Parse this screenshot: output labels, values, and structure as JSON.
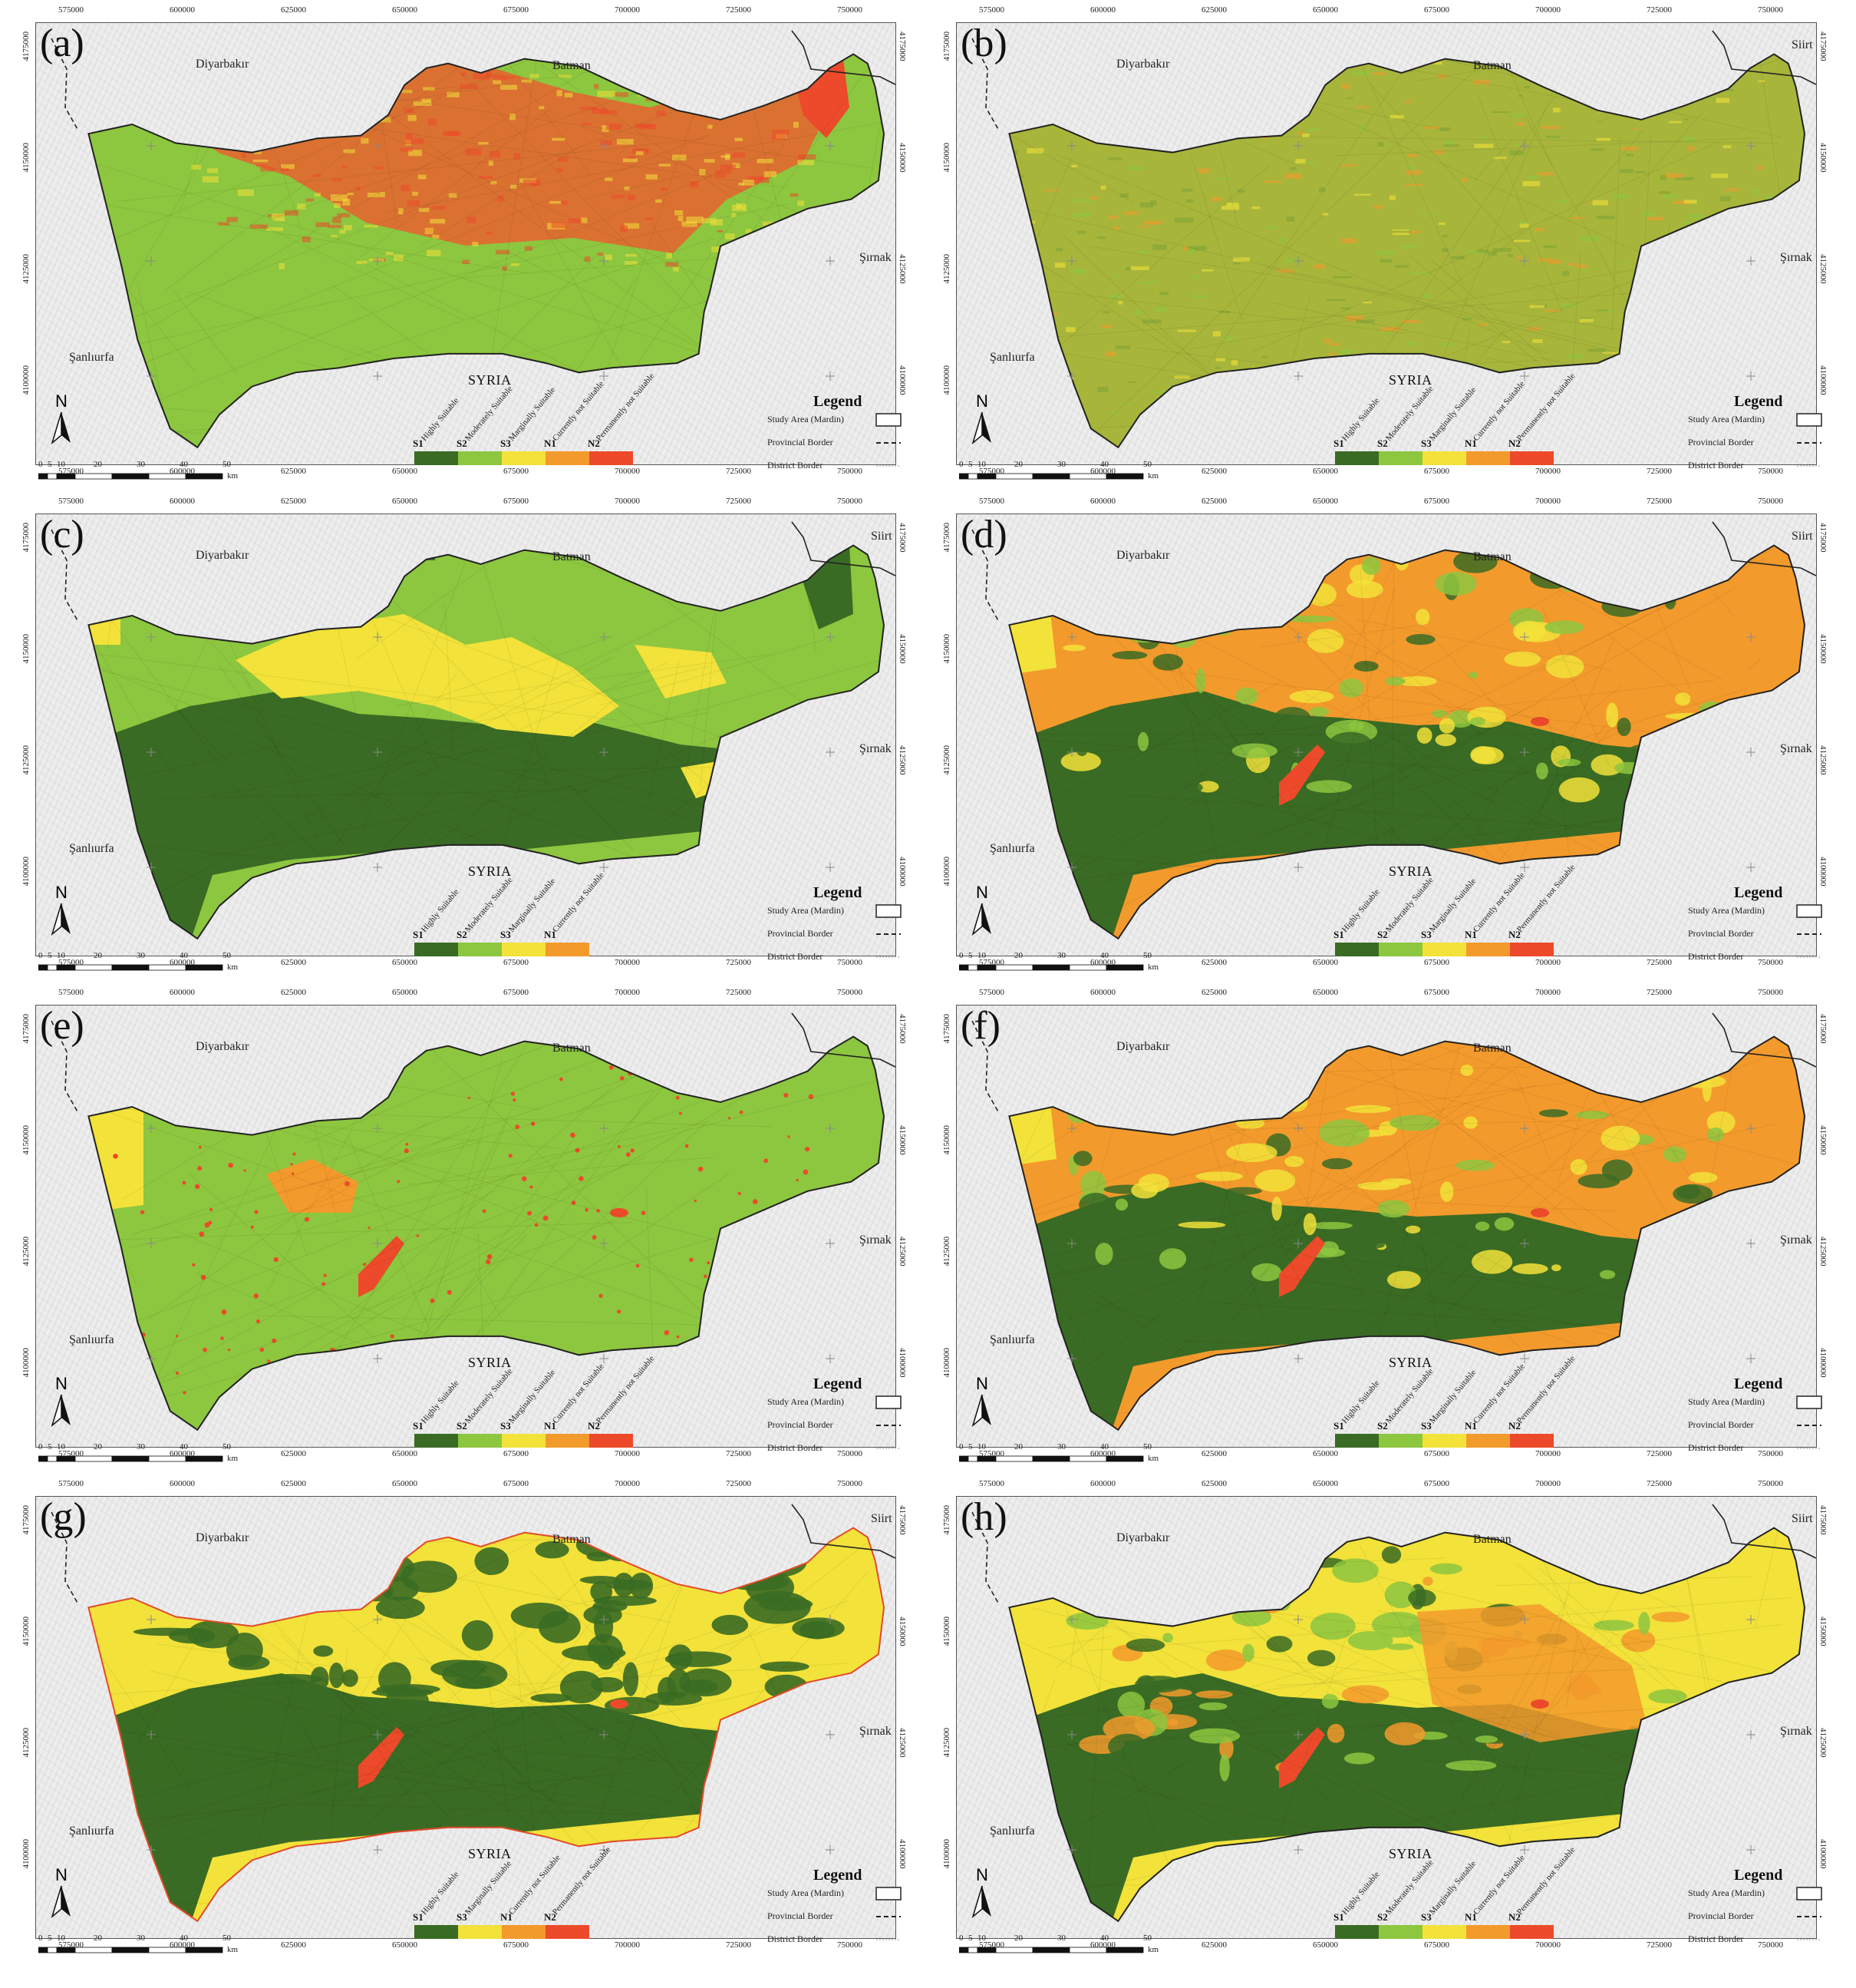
{
  "x_ticks": [
    "575000",
    "600000",
    "625000",
    "650000",
    "675000",
    "700000",
    "725000",
    "750000"
  ],
  "y_ticks": [
    "4175000",
    "4150000",
    "4125000",
    "4100000"
  ],
  "places": {
    "diyarbakir": "Diyarbakır",
    "batman": "Batman",
    "siirt": "Siirt",
    "sirnak": "Şırnak",
    "sanliurfa": "Şanlıurfa",
    "syria": "SYRIA"
  },
  "legend": {
    "title": "Legend",
    "study_area": "Study Area (Mardin)",
    "provincial": "Provincial Border",
    "district": "District Border"
  },
  "scale": {
    "labels": [
      "0",
      "5",
      "10",
      "20",
      "30",
      "40",
      "50"
    ],
    "unit": "km"
  },
  "north": "N",
  "class_colors": {
    "S1": "#3a6b24",
    "S2": "#8dc63f",
    "S3": "#f2e23a",
    "N1": "#f39a2c",
    "N2": "#ec4a2a"
  },
  "class_names": {
    "S1": "Highly Suitable",
    "S2": "Moderately Suitable",
    "S3": "Marginally Suitable",
    "N1": "Currently not Suitable",
    "N2": "Permanently not Suitable"
  },
  "panels": [
    {
      "label": "(a)",
      "classes": [
        "S1",
        "S2",
        "S3",
        "N1",
        "N2"
      ],
      "show_siirt": false,
      "dominant": [
        "#8dc63f",
        "#e8612f"
      ],
      "style": "gradient-a"
    },
    {
      "label": "(b)",
      "classes": [
        "S1",
        "S2",
        "S3",
        "N1",
        "N2"
      ],
      "show_siirt": true,
      "dominant": [
        "#9bbd3a",
        "#d8a030"
      ],
      "style": "gradient-b"
    },
    {
      "label": "(c)",
      "classes": [
        "S1",
        "S2",
        "S3",
        "N1"
      ],
      "show_siirt": true,
      "dominant": [
        "#3a6b24",
        "#8dc63f",
        "#f2e23a"
      ],
      "style": "zones-c"
    },
    {
      "label": "(d)",
      "classes": [
        "S1",
        "S2",
        "S3",
        "N1",
        "N2"
      ],
      "show_siirt": true,
      "dominant": [
        "#3a6b24",
        "#f39a2c"
      ],
      "style": "zones-d"
    },
    {
      "label": "(e)",
      "classes": [
        "S1",
        "S2",
        "S3",
        "N1",
        "N2"
      ],
      "show_siirt": false,
      "dominant": [
        "#8dc63f"
      ],
      "style": "zones-e"
    },
    {
      "label": "(f)",
      "classes": [
        "S1",
        "S2",
        "S3",
        "N1",
        "N2"
      ],
      "show_siirt": false,
      "dominant": [
        "#3a6b24",
        "#f39a2c"
      ],
      "style": "zones-f"
    },
    {
      "label": "(g)",
      "classes": [
        "S1",
        "S3",
        "N1",
        "N2"
      ],
      "show_siirt": true,
      "dominant": [
        "#3a6b24",
        "#f2e23a"
      ],
      "style": "zones-g"
    },
    {
      "label": "(h)",
      "classes": [
        "S1",
        "S2",
        "S3",
        "N1",
        "N2"
      ],
      "show_siirt": true,
      "dominant": [
        "#3a6b24",
        "#f2e23a",
        "#f39a2c"
      ],
      "style": "zones-h"
    }
  ]
}
